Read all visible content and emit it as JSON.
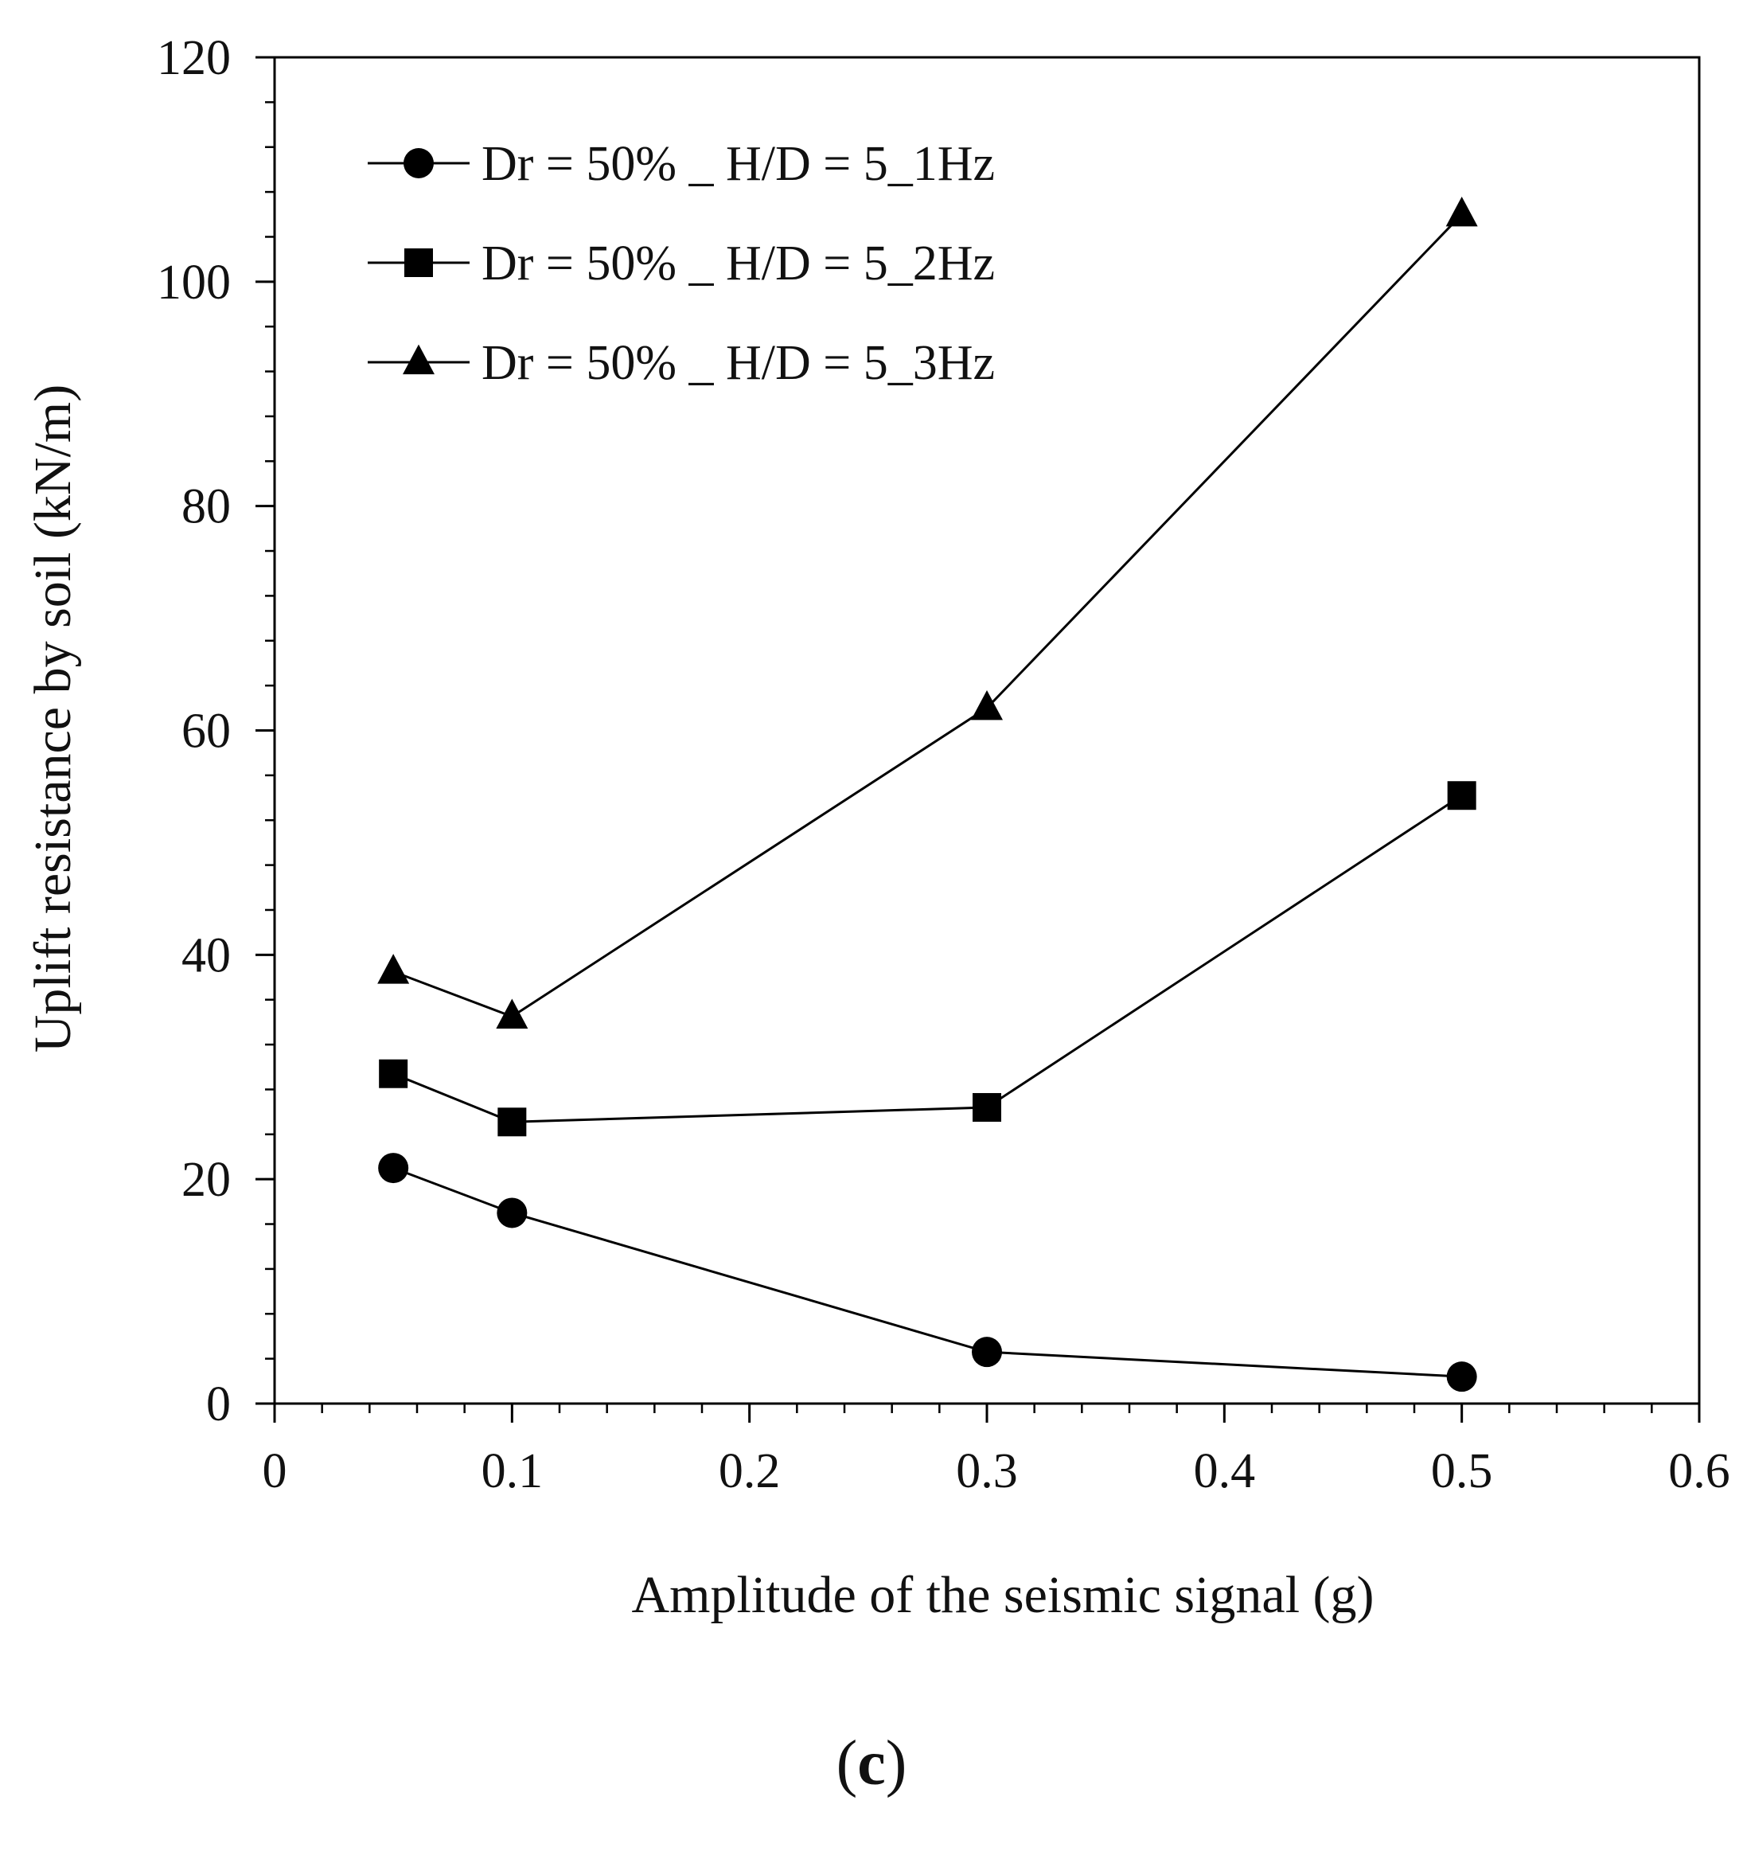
{
  "chart_data": {
    "type": "line",
    "title": "",
    "xlabel": "Amplitude of the seismic signal (g)",
    "ylabel": "Uplift resistance by soil (kN/m)",
    "xlim": [
      0,
      0.6
    ],
    "ylim": [
      0,
      120
    ],
    "x_ticks": [
      0,
      0.1,
      0.2,
      0.3,
      0.4,
      0.5,
      0.6
    ],
    "x_tick_labels": [
      "0",
      "0.1",
      "0.2",
      "0.3",
      "0.4",
      "0.5",
      "0.6"
    ],
    "y_ticks": [
      0,
      20,
      40,
      60,
      80,
      100,
      120
    ],
    "y_tick_labels": [
      "0",
      "20",
      "40",
      "60",
      "80",
      "100",
      "120"
    ],
    "x_minor_step": 0.02,
    "y_minor_step": 4,
    "grid": false,
    "legend_position": "top-left",
    "line_color": "#000000",
    "series": [
      {
        "name": "Dr = 50% _ H/D = 5_1Hz",
        "marker": "circle",
        "x": [
          0.05,
          0.1,
          0.3,
          0.5
        ],
        "values": [
          21,
          17,
          4.6,
          2.4
        ]
      },
      {
        "name": "Dr = 50% _ H/D = 5_2Hz",
        "marker": "square",
        "x": [
          0.05,
          0.1,
          0.3,
          0.5
        ],
        "values": [
          29.4,
          25.1,
          26.4,
          54.2
        ]
      },
      {
        "name": "Dr = 50% _ H/D = 5_3Hz",
        "marker": "triangle",
        "x": [
          0.05,
          0.1,
          0.3,
          0.5
        ],
        "values": [
          38.5,
          34.5,
          62,
          106
        ]
      }
    ]
  },
  "panel_label": {
    "open": "(",
    "letter": "c",
    "close": ")"
  }
}
